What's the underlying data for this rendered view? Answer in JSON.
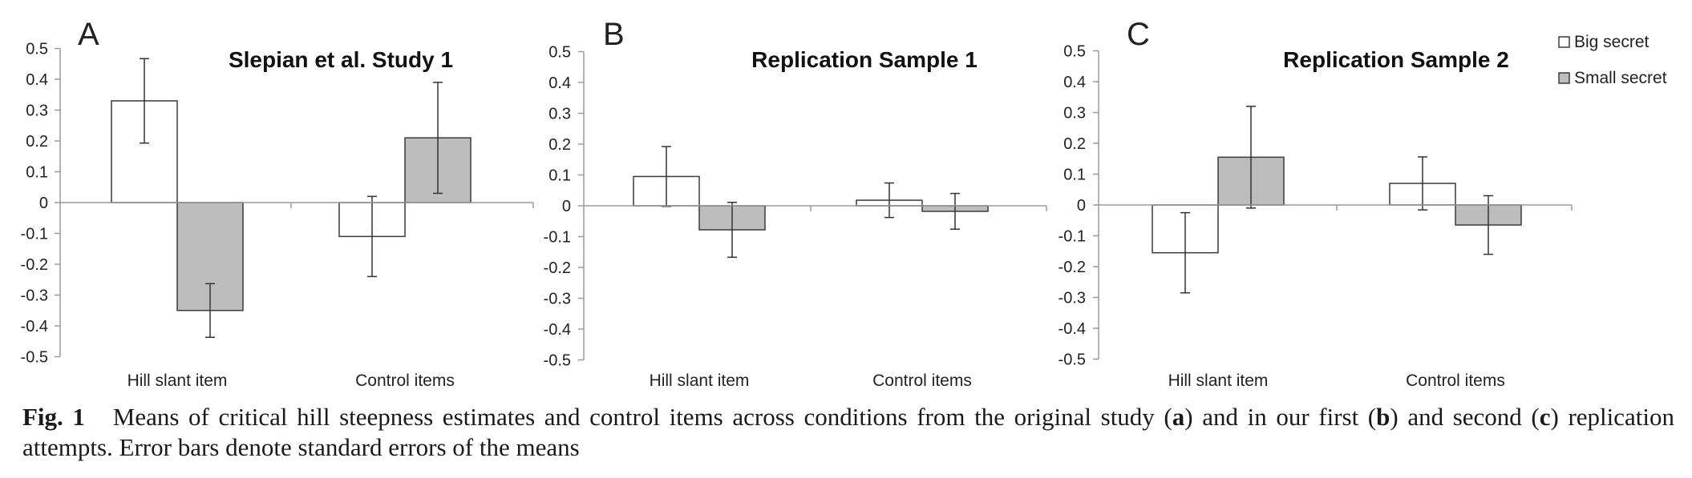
{
  "chart_data": [
    {
      "type": "bar",
      "panel_letter": "A",
      "title": "Slepian et al. Study 1",
      "categories": [
        "Hill slant item",
        "Control items"
      ],
      "ylim": [
        -0.5,
        0.5
      ],
      "yticks": [
        "0.5",
        "0.4",
        "0.3",
        "0.2",
        "0.1",
        "0",
        "-0.1",
        "-0.2",
        "-0.3",
        "-0.4",
        "-0.5"
      ],
      "series": [
        {
          "name": "Big secret",
          "values": [
            0.33,
            -0.11
          ],
          "errors": [
            0.137,
            0.13
          ]
        },
        {
          "name": "Small secret",
          "values": [
            -0.35,
            0.21
          ],
          "errors": [
            0.087,
            0.18
          ]
        }
      ]
    },
    {
      "type": "bar",
      "panel_letter": "B",
      "title": "Replication Sample 1",
      "categories": [
        "Hill slant item",
        "Control items"
      ],
      "ylim": [
        -0.5,
        0.5
      ],
      "yticks": [
        "0.5",
        "0.4",
        "0.3",
        "0.2",
        "0.1",
        "0",
        "-0.1",
        "-0.2",
        "-0.3",
        "-0.4",
        "-0.5"
      ],
      "series": [
        {
          "name": "Big secret",
          "values": [
            0.095,
            0.018
          ],
          "errors": [
            0.097,
            0.056
          ]
        },
        {
          "name": "Small secret",
          "values": [
            -0.078,
            -0.018
          ],
          "errors": [
            0.089,
            0.058
          ]
        }
      ]
    },
    {
      "type": "bar",
      "panel_letter": "C",
      "title": "Replication Sample 2",
      "categories": [
        "Hill slant item",
        "Control items"
      ],
      "ylim": [
        -0.5,
        0.5
      ],
      "yticks": [
        "0.5",
        "0.4",
        "0.3",
        "0.2",
        "0.1",
        "0",
        "-0.1",
        "-0.2",
        "-0.3",
        "-0.4",
        "-0.5"
      ],
      "series": [
        {
          "name": "Big secret",
          "values": [
            -0.155,
            0.07
          ],
          "errors": [
            0.13,
            0.086
          ]
        },
        {
          "name": "Small secret",
          "values": [
            0.155,
            -0.065
          ],
          "errors": [
            0.165,
            0.095
          ]
        }
      ]
    }
  ],
  "legend": {
    "position": "top-right",
    "entries": [
      {
        "name": "Big secret",
        "color": "#ffffff"
      },
      {
        "name": "Small secret",
        "color": "#bdbdbd"
      }
    ]
  },
  "caption": {
    "label": "Fig. 1",
    "text_1": "Means of critical hill steepness estimates and control items across conditions from the original study (",
    "letter_a": "a",
    "text_2": ") and in our first (",
    "letter_b": "b",
    "text_3": ") and second (",
    "letter_c": "c",
    "text_4": ") replication attempts. Error bars denote standard errors of the means"
  },
  "colors": {
    "big": "#ffffff",
    "small": "#bdbdbd",
    "outline": "#3a3a3a",
    "axis": "#9a9a9a"
  }
}
